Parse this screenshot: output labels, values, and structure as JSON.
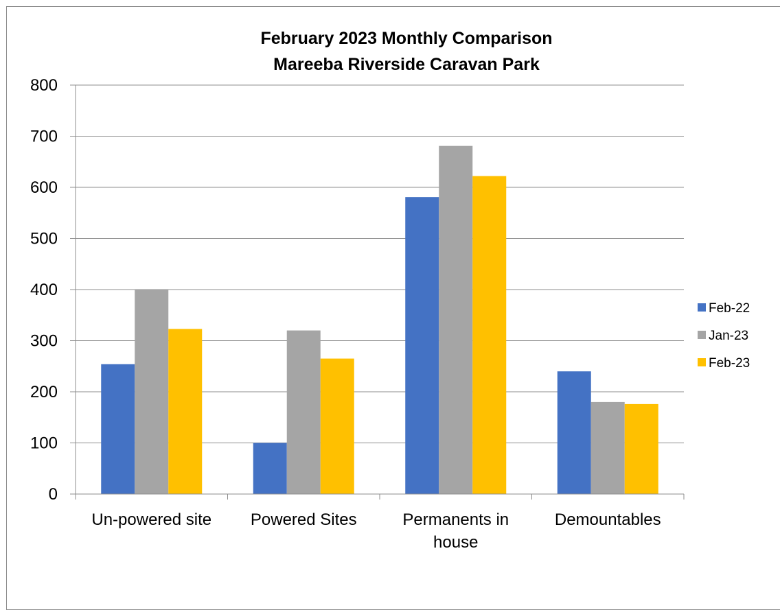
{
  "chart_data": {
    "type": "bar",
    "title_lines": [
      "February 2023  Monthly Comparison",
      "Mareeba Riverside Caravan Park"
    ],
    "categories": [
      [
        "Un-powered site"
      ],
      [
        "Powered Sites"
      ],
      [
        "Permanents in",
        "house"
      ],
      [
        "Demountables"
      ]
    ],
    "series": [
      {
        "name": "Feb-22",
        "color": "#4472C4",
        "values": [
          254,
          100,
          581,
          240
        ]
      },
      {
        "name": "Jan-23",
        "color": "#A5A5A5",
        "values": [
          400,
          320,
          681,
          180
        ]
      },
      {
        "name": "Feb-23",
        "color": "#FFC000",
        "values": [
          323,
          265,
          622,
          176
        ]
      }
    ],
    "ylim": [
      0,
      800
    ],
    "yticks": [
      0,
      100,
      200,
      300,
      400,
      500,
      600,
      700,
      800
    ],
    "grid": true,
    "legend_position": "right"
  }
}
